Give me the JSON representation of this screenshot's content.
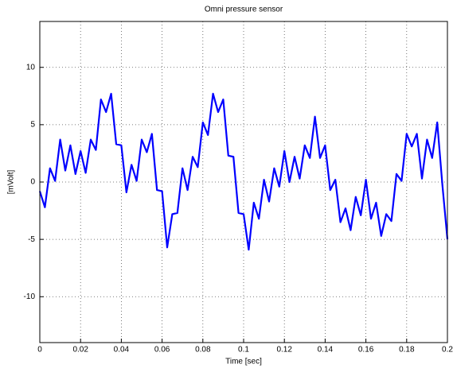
{
  "chart_data": {
    "type": "line",
    "title": "Omni pressure sensor",
    "xlabel": "Time [sec]",
    "ylabel": "[mVolt]",
    "x": [
      0,
      0.0025,
      0.005,
      0.0075,
      0.01,
      0.0125,
      0.015,
      0.0175,
      0.02,
      0.0225,
      0.025,
      0.0275,
      0.03,
      0.0325,
      0.035,
      0.0375,
      0.04,
      0.0425,
      0.045,
      0.0475,
      0.05,
      0.0525,
      0.055,
      0.0575,
      0.06,
      0.0625,
      0.065,
      0.0675,
      0.07,
      0.0725,
      0.075,
      0.0775,
      0.08,
      0.0825,
      0.085,
      0.0875,
      0.09,
      0.0925,
      0.095,
      0.0975,
      0.1,
      0.1025,
      0.105,
      0.1075,
      0.11,
      0.1125,
      0.115,
      0.1175,
      0.12,
      0.1225,
      0.125,
      0.1275,
      0.13,
      0.1325,
      0.135,
      0.1375,
      0.14,
      0.1425,
      0.145,
      0.1475,
      0.15,
      0.1525,
      0.155,
      0.1575,
      0.16,
      0.1625,
      0.165,
      0.1675,
      0.17,
      0.1725,
      0.175,
      0.1775,
      0.18,
      0.1825,
      0.185,
      0.1875,
      0.19,
      0.1925,
      0.195,
      0.1975,
      0.2
    ],
    "series": [
      {
        "color": "#0000ff",
        "values": [
          -0.8,
          -2.2,
          1.2,
          0.1,
          3.7,
          1.0,
          3.2,
          0.7,
          2.7,
          0.8,
          3.7,
          2.8,
          7.2,
          6.1,
          7.7,
          3.3,
          3.2,
          -0.9,
          1.5,
          0.1,
          3.7,
          2.6,
          4.2,
          -0.7,
          -0.8,
          -5.7,
          -2.8,
          -2.7,
          1.2,
          -0.7,
          2.2,
          1.3,
          5.2,
          4.1,
          7.7,
          6.1,
          7.2,
          2.3,
          2.2,
          -2.7,
          -2.8,
          -5.9,
          -1.8,
          -3.2,
          0.2,
          -1.7,
          1.2,
          -0.4,
          2.7,
          0,
          2.2,
          0.3,
          3.2,
          2.1,
          5.7,
          2.1,
          3.2,
          -0.7,
          0.2,
          -3.5,
          -2.3,
          -4.2,
          -1.3,
          -2.9,
          0.2,
          -3.2,
          -1.8,
          -4.7,
          -2.8,
          -3.4,
          0.7,
          0.1,
          4.2,
          3.1,
          4.2,
          0.3,
          3.7,
          2.1,
          5.2,
          -0.2,
          -5
        ]
      }
    ],
    "xlim": [
      0,
      0.2
    ],
    "xticks": [
      0,
      0.02,
      0.04,
      0.06,
      0.08,
      0.1,
      0.12,
      0.14,
      0.16,
      0.18,
      0.2
    ],
    "ylim": [
      -14,
      14
    ],
    "yticks": [
      -10,
      -5,
      0,
      5,
      10
    ],
    "grid": true
  }
}
